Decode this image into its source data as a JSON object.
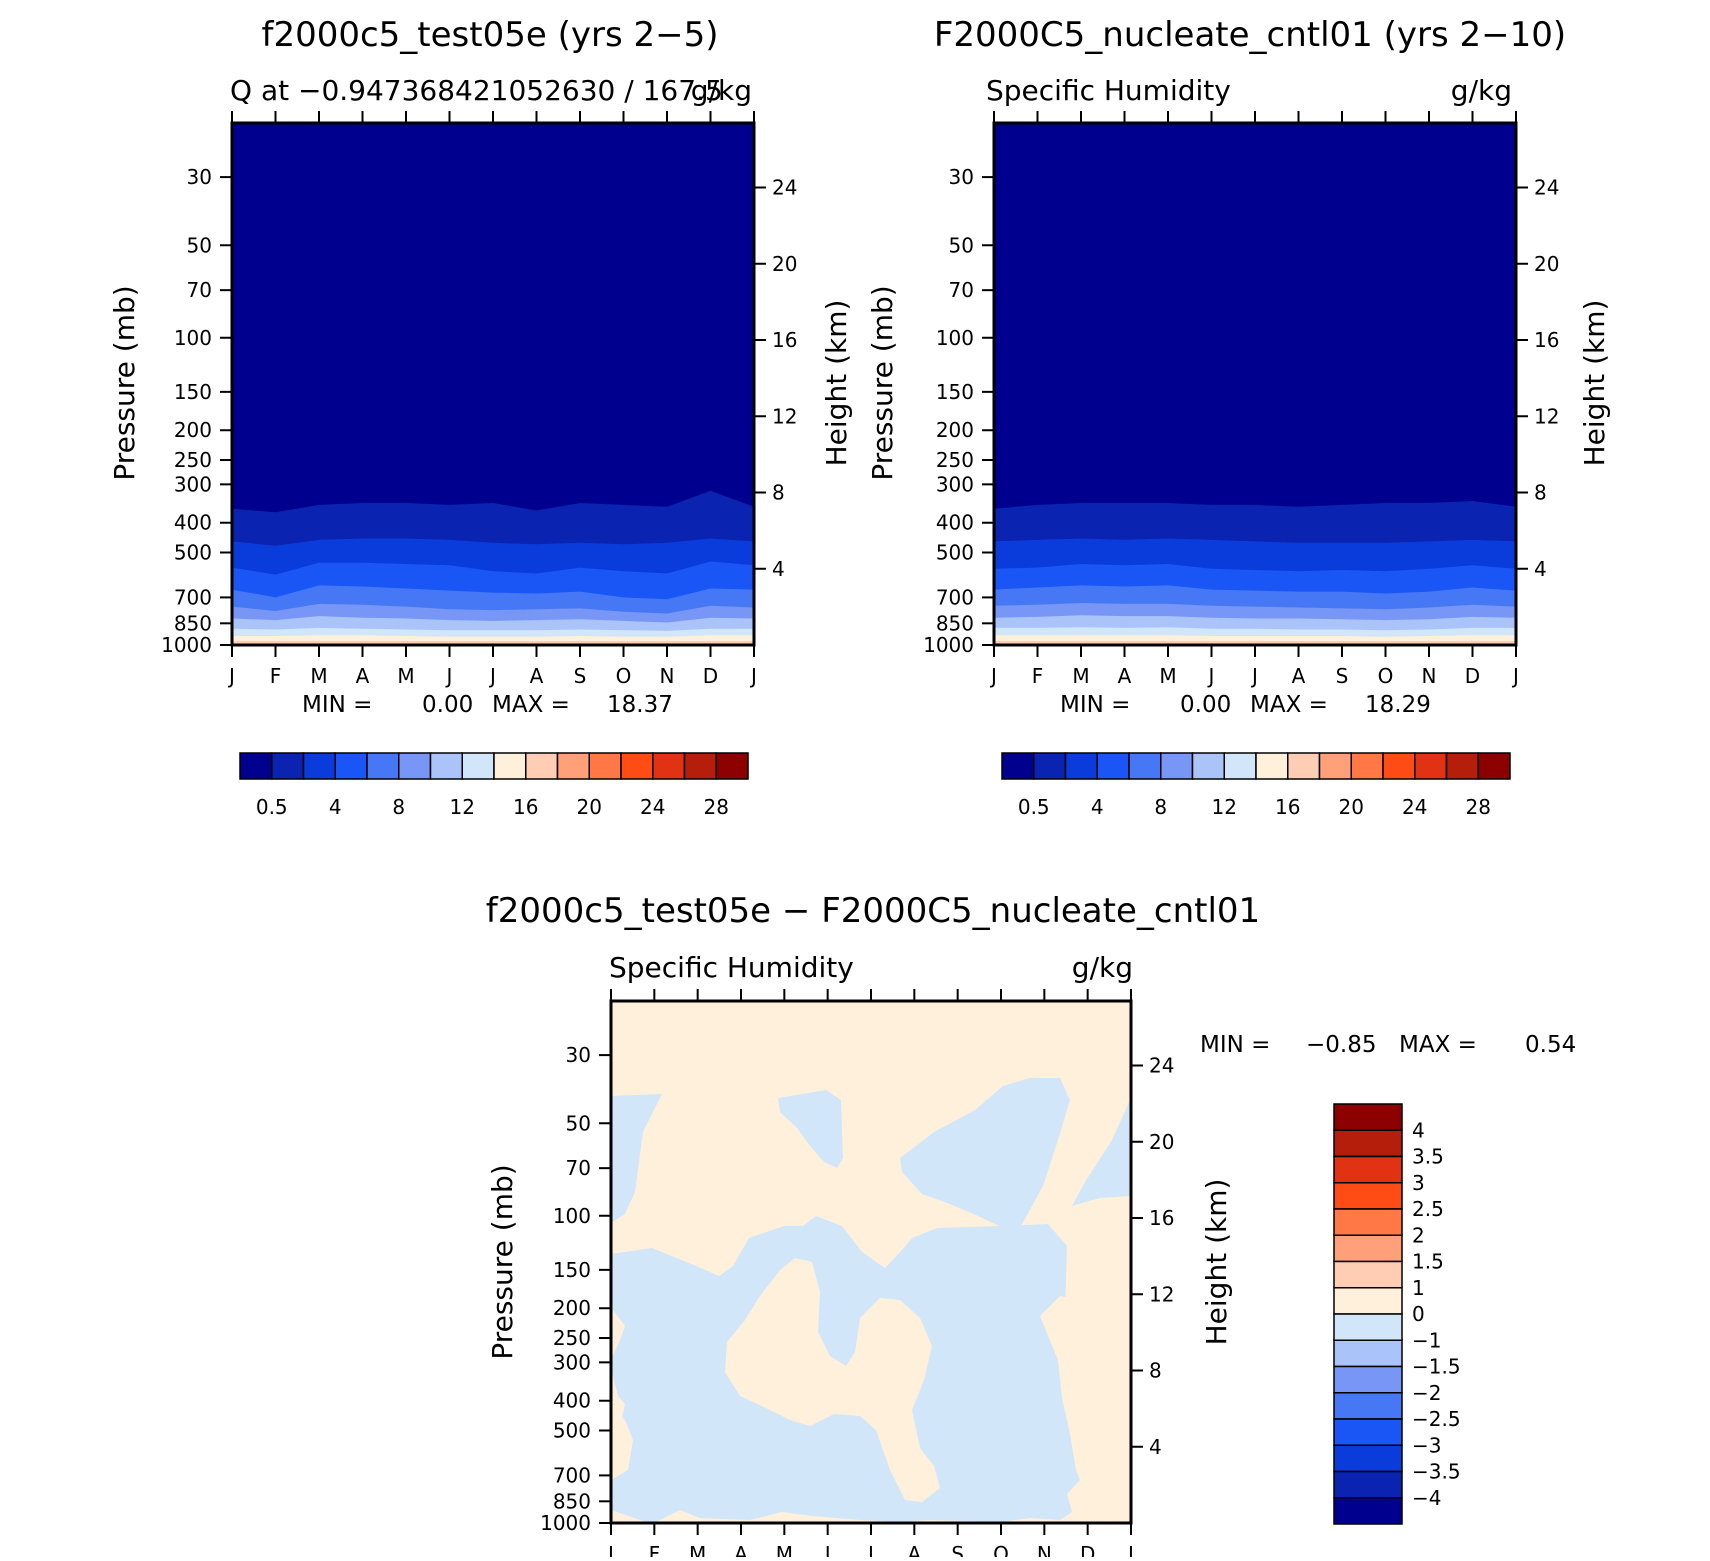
{
  "chart_data": [
    {
      "type": "heatmap",
      "id": "panel1",
      "title": "f2000c5_test05e (yrs 2−5)",
      "subtitle_left": "Q at −0.947368421052630 / 167.5",
      "subtitle_right": "g/kg",
      "xlabel": "",
      "ylabel": "Pressure (mb)",
      "ylabel_right": "Height (km)",
      "x_ticks": [
        "J",
        "F",
        "M",
        "A",
        "M",
        "J",
        "J",
        "A",
        "S",
        "O",
        "N",
        "D",
        "J"
      ],
      "y_ticks": [
        "30",
        "50",
        "70",
        "100",
        "150",
        "200",
        "250",
        "300",
        "400",
        "500",
        "700",
        "850",
        "1000"
      ],
      "y_ticks_right": [
        "24",
        "20",
        "16",
        "12",
        "8",
        "4"
      ],
      "min_label": "MIN =",
      "min_value": "0.00",
      "max_label": "MAX =",
      "max_value": "18.37",
      "colorbar_labels": [
        "0.5",
        "4",
        "8",
        "12",
        "16",
        "20",
        "24",
        "28"
      ],
      "contour_boundaries_mb": [
        [
          360,
          370,
          350,
          345,
          345,
          350,
          345,
          365,
          345,
          350,
          355,
          315,
          355
        ],
        [
          460,
          475,
          455,
          450,
          450,
          455,
          465,
          470,
          465,
          470,
          465,
          450,
          460
        ],
        [
          560,
          590,
          540,
          540,
          545,
          550,
          575,
          585,
          560,
          575,
          585,
          535,
          550
        ],
        [
          660,
          700,
          640,
          645,
          655,
          665,
          675,
          680,
          670,
          700,
          710,
          655,
          660
        ],
        [
          750,
          775,
          735,
          740,
          750,
          765,
          770,
          765,
          760,
          780,
          790,
          745,
          755
        ],
        [
          820,
          830,
          805,
          815,
          820,
          830,
          835,
          830,
          825,
          835,
          845,
          815,
          820
        ],
        [
          885,
          890,
          880,
          885,
          890,
          895,
          895,
          895,
          890,
          895,
          900,
          885,
          885
        ],
        [
          935,
          935,
          930,
          930,
          935,
          940,
          940,
          940,
          935,
          940,
          940,
          930,
          930
        ],
        [
          970,
          970,
          970,
          970,
          970,
          975,
          975,
          975,
          970,
          975,
          975,
          970,
          970
        ]
      ]
    },
    {
      "type": "heatmap",
      "id": "panel2",
      "title": "F2000C5_nucleate_cntl01 (yrs 2−10)",
      "subtitle_left": "Specific Humidity",
      "subtitle_right": "g/kg",
      "xlabel": "",
      "ylabel": "Pressure (mb)",
      "ylabel_right": "Height (km)",
      "x_ticks": [
        "J",
        "F",
        "M",
        "A",
        "M",
        "J",
        "J",
        "A",
        "S",
        "O",
        "N",
        "D",
        "J"
      ],
      "y_ticks": [
        "30",
        "50",
        "70",
        "100",
        "150",
        "200",
        "250",
        "300",
        "400",
        "500",
        "700",
        "850",
        "1000"
      ],
      "y_ticks_right": [
        "24",
        "20",
        "16",
        "12",
        "8",
        "4"
      ],
      "min_label": "MIN =",
      "min_value": "0.00",
      "max_label": "MAX =",
      "max_value": "18.29",
      "colorbar_labels": [
        "0.5",
        "4",
        "8",
        "12",
        "16",
        "20",
        "24",
        "28"
      ],
      "contour_boundaries_mb": [
        [
          360,
          350,
          345,
          345,
          345,
          350,
          350,
          355,
          350,
          345,
          345,
          340,
          355
        ],
        [
          460,
          455,
          450,
          455,
          450,
          455,
          460,
          465,
          465,
          465,
          460,
          455,
          460
        ],
        [
          565,
          560,
          545,
          550,
          545,
          565,
          570,
          575,
          570,
          575,
          565,
          550,
          565
        ],
        [
          660,
          650,
          640,
          645,
          640,
          660,
          665,
          670,
          670,
          680,
          670,
          650,
          665
        ],
        [
          745,
          740,
          730,
          735,
          735,
          745,
          750,
          755,
          760,
          765,
          755,
          740,
          750
        ],
        [
          815,
          810,
          800,
          805,
          805,
          815,
          820,
          820,
          825,
          830,
          825,
          810,
          815
        ],
        [
          880,
          880,
          875,
          880,
          875,
          885,
          885,
          890,
          890,
          895,
          890,
          880,
          880
        ],
        [
          930,
          930,
          930,
          930,
          930,
          935,
          935,
          935,
          935,
          940,
          935,
          930,
          930
        ],
        [
          970,
          970,
          970,
          970,
          970,
          970,
          970,
          975,
          975,
          975,
          975,
          970,
          970
        ]
      ]
    },
    {
      "type": "heatmap",
      "id": "panel3",
      "title": "f2000c5_test05e − F2000C5_nucleate_cntl01",
      "subtitle_left": "Specific Humidity",
      "subtitle_right": "g/kg",
      "xlabel": "",
      "ylabel": "Pressure (mb)",
      "ylabel_right": "Height (km)",
      "x_ticks": [
        "J",
        "F",
        "M",
        "A",
        "M",
        "J",
        "J",
        "A",
        "S",
        "O",
        "N",
        "D",
        "J"
      ],
      "y_ticks": [
        "30",
        "50",
        "70",
        "100",
        "150",
        "200",
        "250",
        "300",
        "400",
        "500",
        "700",
        "850",
        "1000"
      ],
      "y_ticks_right": [
        "24",
        "20",
        "16",
        "12",
        "8",
        "4"
      ],
      "min_label": "MIN =",
      "min_value": "−0.85",
      "max_label": "MAX =",
      "max_value": "0.54",
      "colorbar_labels": [
        "4",
        "3.5",
        "3",
        "2.5",
        "2",
        "1.5",
        "1",
        "0",
        "−1",
        "−1.5",
        "−2",
        "−2.5",
        "−3",
        "−3.5",
        "−4"
      ],
      "fill_positive": "0 to 1",
      "fill_negative": "−1 to 0"
    }
  ],
  "colors": {
    "seq": [
      "#00008e",
      "#0a23b0",
      "#0a3cdc",
      "#1a55f5",
      "#4678f5",
      "#7896f5",
      "#aac4fa",
      "#d2e6fa",
      "#fff0dc",
      "#ffcdb4",
      "#ffa078",
      "#ff7846",
      "#ff4b14",
      "#e13214",
      "#b41e0a",
      "#8c0000"
    ],
    "diff": [
      "#8c0000",
      "#b41e0a",
      "#e13214",
      "#ff4b14",
      "#ff7846",
      "#ffa078",
      "#ffcdb4",
      "#fff0dc",
      "#d2e6fa",
      "#aac4fa",
      "#7896f5",
      "#4678f5",
      "#1a55f5",
      "#0a3cdc",
      "#0a23b0",
      "#00008e"
    ]
  }
}
